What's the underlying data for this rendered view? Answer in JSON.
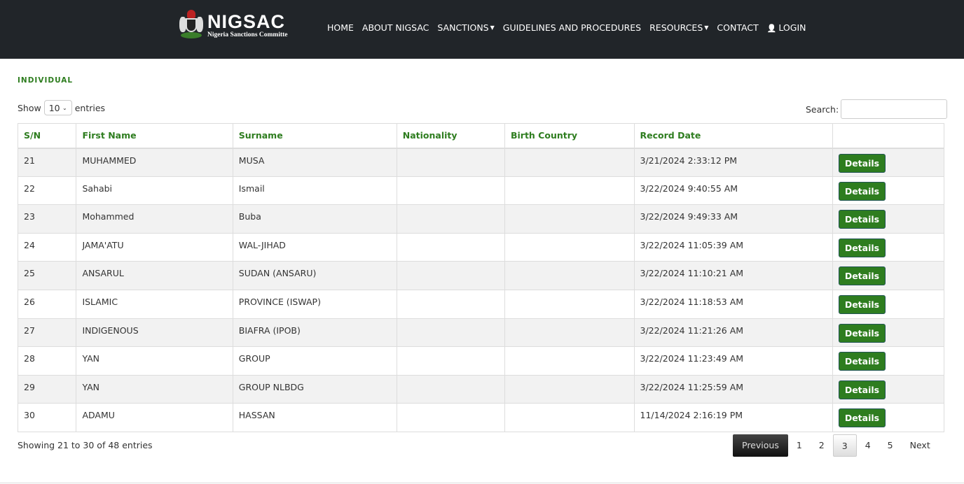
{
  "brand": {
    "title": "NIGSAC",
    "subtitle": "Nigeria Sanctions Committe"
  },
  "nav": [
    {
      "label": "HOME"
    },
    {
      "label": "ABOUT NIGSAC"
    },
    {
      "label": "SANCTIONS",
      "dropdown": true
    },
    {
      "label": "GUIDELINES AND PROCEDURES"
    },
    {
      "label": "RESOURCES",
      "dropdown": true
    },
    {
      "label": "CONTACT"
    },
    {
      "label": "LOGIN",
      "icon": "user-icon"
    }
  ],
  "section_title": "INDIVIDUAL",
  "length": {
    "show": "Show",
    "value": "10",
    "entries": "entries"
  },
  "search": {
    "label": "Search:",
    "value": ""
  },
  "columns": [
    "S/N",
    "First Name",
    "Surname",
    "Nationality",
    "Birth Country",
    "Record Date",
    ""
  ],
  "rows": [
    {
      "sn": "21",
      "first": "MUHAMMED",
      "surname": "MUSA",
      "nationality": "",
      "birth": "",
      "date": "3/21/2024 2:33:12 PM",
      "action": "Details"
    },
    {
      "sn": "22",
      "first": "Sahabi",
      "surname": "Ismail",
      "nationality": "",
      "birth": "",
      "date": "3/22/2024 9:40:55 AM",
      "action": "Details"
    },
    {
      "sn": "23",
      "first": "Mohammed",
      "surname": "Buba",
      "nationality": "",
      "birth": "",
      "date": "3/22/2024 9:49:33 AM",
      "action": "Details"
    },
    {
      "sn": "24",
      "first": "JAMA'ATU",
      "surname": "WAL-JIHAD",
      "nationality": "",
      "birth": "",
      "date": "3/22/2024 11:05:39 AM",
      "action": "Details"
    },
    {
      "sn": "25",
      "first": "ANSARUL",
      "surname": "SUDAN (ANSARU)",
      "nationality": "",
      "birth": "",
      "date": "3/22/2024 11:10:21 AM",
      "action": "Details"
    },
    {
      "sn": "26",
      "first": "ISLAMIC",
      "surname": "PROVINCE (ISWAP)",
      "nationality": "",
      "birth": "",
      "date": "3/22/2024 11:18:53 AM",
      "action": "Details"
    },
    {
      "sn": "27",
      "first": "INDIGENOUS",
      "surname": "BIAFRA (IPOB)",
      "nationality": "",
      "birth": "",
      "date": "3/22/2024 11:21:26 AM",
      "action": "Details"
    },
    {
      "sn": "28",
      "first": "YAN",
      "surname": "GROUP",
      "nationality": "",
      "birth": "",
      "date": "3/22/2024 11:23:49 AM",
      "action": "Details"
    },
    {
      "sn": "29",
      "first": "YAN",
      "surname": "GROUP NLBDG",
      "nationality": "",
      "birth": "",
      "date": "3/22/2024 11:25:59 AM",
      "action": "Details"
    },
    {
      "sn": "30",
      "first": "ADAMU",
      "surname": "HASSAN",
      "nationality": "",
      "birth": "",
      "date": "11/14/2024 2:16:19 PM",
      "action": "Details"
    }
  ],
  "info": "Showing 21 to 30 of 48 entries",
  "pagination": {
    "previous": "Previous",
    "pages": [
      "1",
      "2",
      "3",
      "4",
      "5"
    ],
    "current": "3",
    "next": "Next"
  },
  "colors": {
    "accent": "#2e7d1f",
    "navbar": "#212529"
  }
}
